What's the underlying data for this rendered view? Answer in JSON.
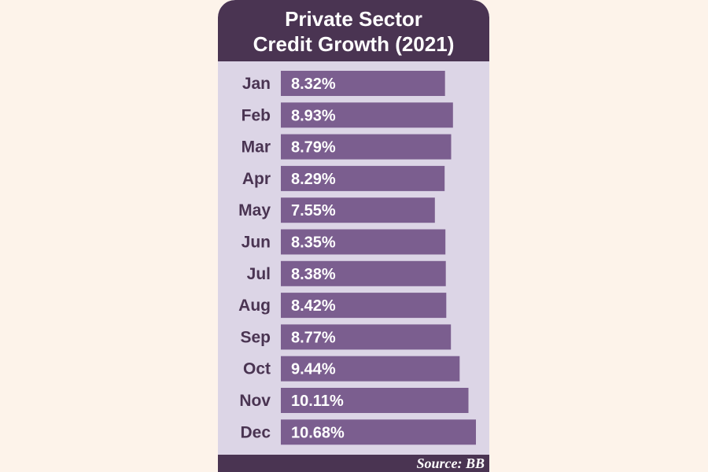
{
  "colors": {
    "background": "#fdf3ea",
    "panel": "#dcd5e6",
    "header": "#4a3452",
    "bar": "#7b5e8f",
    "month_label": "#4a3452",
    "bar_text": "#ffffff"
  },
  "chart_data": {
    "type": "bar",
    "orientation": "horizontal",
    "title_lines": [
      "Private Sector",
      "Credit Growth (2021)"
    ],
    "categories": [
      "Jan",
      "Feb",
      "Mar",
      "Apr",
      "May",
      "Jun",
      "Jul",
      "Aug",
      "Sep",
      "Oct",
      "Nov",
      "Dec"
    ],
    "values": [
      8.32,
      8.93,
      8.79,
      8.29,
      7.55,
      8.35,
      8.38,
      8.42,
      8.77,
      9.44,
      10.11,
      10.68
    ],
    "labels": [
      "8.32%",
      "8.93%",
      "8.79%",
      "8.29%",
      "7.55%",
      "8.35%",
      "8.38%",
      "8.42%",
      "8.77%",
      "9.44%",
      "10.11%",
      "10.68%"
    ],
    "unit": "%",
    "source": "Source: BB"
  }
}
